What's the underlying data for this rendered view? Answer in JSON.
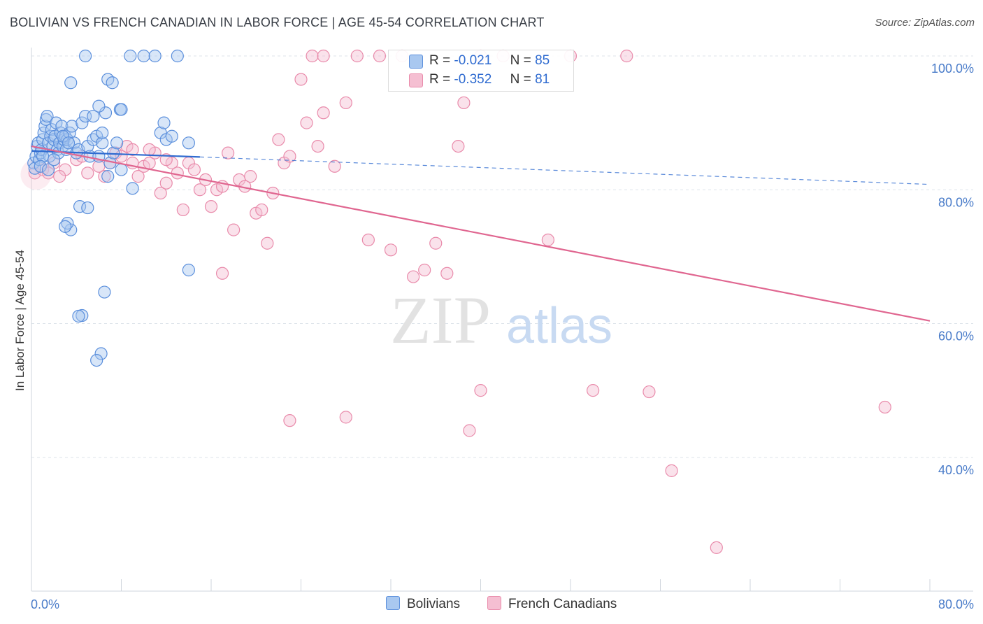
{
  "title": "BOLIVIAN VS FRENCH CANADIAN IN LABOR FORCE | AGE 45-54 CORRELATION CHART",
  "source": "Source: ZipAtlas.com",
  "watermark": {
    "zip": "ZIP",
    "atlas": "atlas"
  },
  "colors": {
    "blue_fill": "#a9c8f0",
    "blue_stroke": "#5b8fdc",
    "blue_line": "#2f6bd0",
    "pink_fill": "#f5bfd2",
    "pink_stroke": "#e98bab",
    "pink_line": "#e06690",
    "tick": "#4a7cc9",
    "grid": "#dde3ea"
  },
  "legend": {
    "rows": [
      {
        "r_label": "R =",
        "r_value": "-0.021",
        "n_label": "N =",
        "n_value": "85"
      },
      {
        "r_label": "R =",
        "r_value": "-0.352",
        "n_label": "N =",
        "n_value": "81"
      }
    ]
  },
  "bottom_legend": [
    "Bolivians",
    "French Canadians"
  ],
  "chart_data": {
    "type": "scatter",
    "xlabel": "",
    "ylabel": "In Labor Force | Age 45-54",
    "xlim": [
      0,
      80
    ],
    "ylim": [
      20,
      100
    ],
    "x_tick_labels": [
      {
        "value": 0,
        "label": "0.0%"
      },
      {
        "value": 80,
        "label": "80.0%"
      }
    ],
    "y_tick_labels": [
      {
        "value": 100,
        "label": "100.0%"
      },
      {
        "value": 80,
        "label": "80.0%"
      },
      {
        "value": 60,
        "label": "60.0%"
      },
      {
        "value": 40,
        "label": "40.0%"
      }
    ],
    "grid": true,
    "series": [
      {
        "name": "Bolivians",
        "trend": {
          "x0": 0,
          "y0": 85.8,
          "x1": 15,
          "y1": 84.9,
          "dashed_to_x": 80,
          "dashed_to_y": 80.8
        },
        "points": [
          [
            0.2,
            84.0
          ],
          [
            0.3,
            83.2
          ],
          [
            0.4,
            85.0
          ],
          [
            0.5,
            86.5
          ],
          [
            0.6,
            87.0
          ],
          [
            0.7,
            84.5
          ],
          [
            0.8,
            85.5
          ],
          [
            0.9,
            86.0
          ],
          [
            1.0,
            87.5
          ],
          [
            1.1,
            88.5
          ],
          [
            1.2,
            89.5
          ],
          [
            1.3,
            90.5
          ],
          [
            1.4,
            91.0
          ],
          [
            1.5,
            87.0
          ],
          [
            1.6,
            85.0
          ],
          [
            1.7,
            88.0
          ],
          [
            1.8,
            89.0
          ],
          [
            1.9,
            86.5
          ],
          [
            2.0,
            87.5
          ],
          [
            2.1,
            88.0
          ],
          [
            2.2,
            90.0
          ],
          [
            2.3,
            86.0
          ],
          [
            2.4,
            85.5
          ],
          [
            2.5,
            87.0
          ],
          [
            2.6,
            88.5
          ],
          [
            2.7,
            89.5
          ],
          [
            2.8,
            86.5
          ],
          [
            2.9,
            87.5
          ],
          [
            3.0,
            88.0
          ],
          [
            3.1,
            86.0
          ],
          [
            3.2,
            87.5
          ],
          [
            3.4,
            88.5
          ],
          [
            3.6,
            89.5
          ],
          [
            3.8,
            87.0
          ],
          [
            4.0,
            85.5
          ],
          [
            4.2,
            86.0
          ],
          [
            4.5,
            90.0
          ],
          [
            4.8,
            91.0
          ],
          [
            5.0,
            86.5
          ],
          [
            5.2,
            85.0
          ],
          [
            5.5,
            87.5
          ],
          [
            5.8,
            88.0
          ],
          [
            6.0,
            85.0
          ],
          [
            6.3,
            87.0
          ],
          [
            6.6,
            91.5
          ],
          [
            6.8,
            82.0
          ],
          [
            7.0,
            84.0
          ],
          [
            7.3,
            85.5
          ],
          [
            7.6,
            87.0
          ],
          [
            7.9,
            92.0
          ],
          [
            8.0,
            83.0
          ],
          [
            1.0,
            85.0
          ],
          [
            0.8,
            83.5
          ],
          [
            1.5,
            83.0
          ],
          [
            2.0,
            84.5
          ],
          [
            3.5,
            96.0
          ],
          [
            4.8,
            100.0
          ],
          [
            5.5,
            91.0
          ],
          [
            6.0,
            92.5
          ],
          [
            6.8,
            96.5
          ],
          [
            7.2,
            96.0
          ],
          [
            8.0,
            92.0
          ],
          [
            6.3,
            88.5
          ],
          [
            9.0,
            80.2
          ],
          [
            8.8,
            100.0
          ],
          [
            10.0,
            100.0
          ],
          [
            11.0,
            100.0
          ],
          [
            11.5,
            88.5
          ],
          [
            11.8,
            90.0
          ],
          [
            12.0,
            87.5
          ],
          [
            12.5,
            88.0
          ],
          [
            13.0,
            100.0
          ],
          [
            14.0,
            87.0
          ],
          [
            3.5,
            74.0
          ],
          [
            3.2,
            75.0
          ],
          [
            3.0,
            74.5
          ],
          [
            4.3,
            77.5
          ],
          [
            5.0,
            77.3
          ],
          [
            14.0,
            68.0
          ],
          [
            6.5,
            64.7
          ],
          [
            4.5,
            61.2
          ],
          [
            4.2,
            61.1
          ],
          [
            6.2,
            55.5
          ],
          [
            5.8,
            54.5
          ],
          [
            2.8,
            88.0
          ],
          [
            3.3,
            87.0
          ]
        ]
      },
      {
        "name": "French Canadians",
        "trend": {
          "x0": 0,
          "y0": 86.5,
          "x1": 80,
          "y1": 60.4
        },
        "points": [
          [
            0.3,
            82.5
          ],
          [
            1.0,
            83.0
          ],
          [
            2.0,
            84.0
          ],
          [
            3.0,
            83.0
          ],
          [
            4.0,
            84.5
          ],
          [
            5.0,
            82.5
          ],
          [
            6.0,
            83.5
          ],
          [
            7.0,
            84.0
          ],
          [
            7.5,
            85.5
          ],
          [
            8.0,
            85.0
          ],
          [
            8.5,
            86.5
          ],
          [
            9.0,
            84.0
          ],
          [
            9.5,
            82.0
          ],
          [
            10.0,
            83.5
          ],
          [
            10.5,
            84.0
          ],
          [
            11.0,
            85.5
          ],
          [
            11.5,
            79.5
          ],
          [
            12.0,
            81.0
          ],
          [
            12.5,
            84.0
          ],
          [
            13.0,
            82.5
          ],
          [
            13.5,
            77.0
          ],
          [
            14.0,
            84.0
          ],
          [
            14.5,
            83.0
          ],
          [
            15.0,
            80.0
          ],
          [
            15.5,
            81.5
          ],
          [
            16.0,
            77.5
          ],
          [
            16.5,
            80.0
          ],
          [
            17.0,
            80.5
          ],
          [
            17.5,
            85.5
          ],
          [
            18.0,
            74.0
          ],
          [
            18.5,
            81.5
          ],
          [
            19.0,
            80.5
          ],
          [
            19.5,
            82.0
          ],
          [
            20.0,
            76.5
          ],
          [
            20.5,
            77.0
          ],
          [
            21.0,
            72.0
          ],
          [
            21.5,
            79.5
          ],
          [
            22.0,
            87.5
          ],
          [
            22.5,
            84.0
          ],
          [
            23.0,
            85.0
          ],
          [
            24.0,
            96.5
          ],
          [
            24.5,
            90.0
          ],
          [
            25.0,
            100.0
          ],
          [
            25.5,
            86.5
          ],
          [
            26.0,
            91.5
          ],
          [
            27.0,
            83.5
          ],
          [
            28.0,
            93.0
          ],
          [
            29.0,
            100.0
          ],
          [
            30.0,
            72.5
          ],
          [
            31.0,
            100.0
          ],
          [
            32.0,
            71.0
          ],
          [
            33.0,
            100.0
          ],
          [
            34.0,
            67.0
          ],
          [
            35.0,
            68.0
          ],
          [
            36.0,
            72.0
          ],
          [
            37.0,
            67.5
          ],
          [
            38.0,
            86.5
          ],
          [
            38.5,
            93.0
          ],
          [
            40.0,
            100.0
          ],
          [
            42.0,
            100.0
          ],
          [
            46.0,
            72.5
          ],
          [
            48.0,
            100.0
          ],
          [
            53.0,
            100.0
          ],
          [
            17.0,
            67.5
          ],
          [
            23.0,
            45.5
          ],
          [
            28.0,
            46.0
          ],
          [
            39.0,
            44.0
          ],
          [
            40.0,
            50.0
          ],
          [
            50.0,
            50.0
          ],
          [
            55.0,
            49.8
          ],
          [
            57.0,
            38.0
          ],
          [
            61.0,
            26.5
          ],
          [
            76.0,
            47.5
          ],
          [
            2.5,
            82.0
          ],
          [
            4.5,
            85.0
          ],
          [
            6.5,
            82.0
          ],
          [
            9.0,
            86.0
          ],
          [
            10.5,
            86.0
          ],
          [
            12.0,
            84.5
          ],
          [
            1.5,
            82.5
          ],
          [
            26.0,
            100.0
          ]
        ]
      }
    ]
  }
}
